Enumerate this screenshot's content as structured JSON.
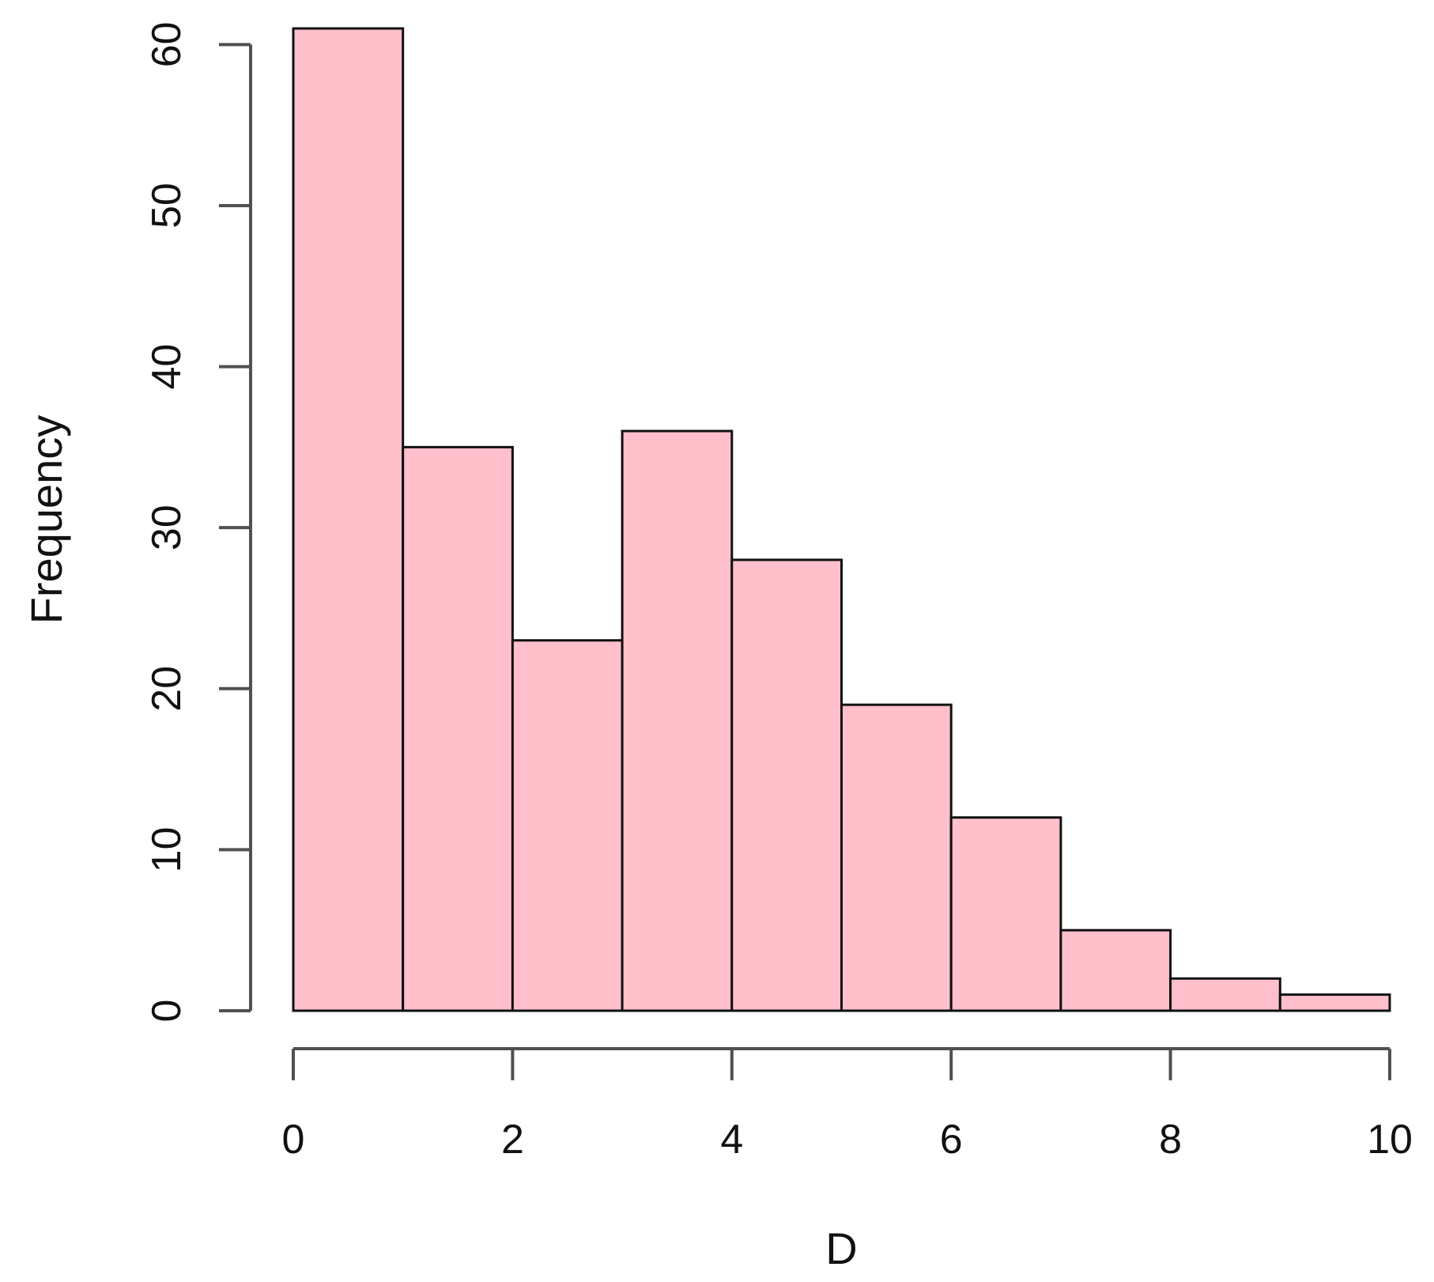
{
  "chart_data": {
    "type": "histogram",
    "title": "",
    "xlabel": "D",
    "ylabel": "Frequency",
    "bin_edges": [
      0,
      1,
      2,
      3,
      4,
      5,
      6,
      7,
      8,
      9,
      10
    ],
    "values": [
      61,
      35,
      23,
      36,
      28,
      19,
      12,
      5,
      2,
      1
    ],
    "xlim": [
      0,
      10
    ],
    "ylim": [
      0,
      61
    ],
    "x_ticks": [
      0,
      2,
      4,
      6,
      8,
      10
    ],
    "x_tick_labels": [
      "0",
      "2",
      "4",
      "6",
      "8",
      "10"
    ],
    "y_ticks": [
      0,
      10,
      20,
      30,
      40,
      50,
      60
    ],
    "y_tick_labels": [
      "0",
      "10",
      "20",
      "30",
      "40",
      "50",
      "60"
    ],
    "grid": false,
    "legend": "none",
    "bar_color": "#ffc0cb",
    "edge_color": "#111111"
  }
}
